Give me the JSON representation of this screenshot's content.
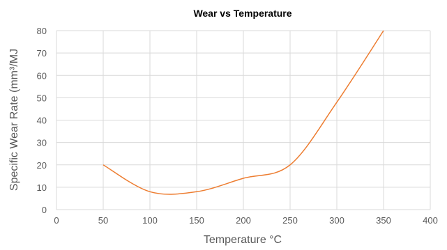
{
  "chart_data": {
    "type": "scatter",
    "title": "Wear vs Temperature",
    "xlabel": "Temperature °C",
    "ylabel": "Specific Wear Rate (mm³/MJ",
    "xlim": [
      0,
      400
    ],
    "ylim": [
      0,
      80
    ],
    "x_ticks": [
      0,
      50,
      100,
      150,
      200,
      250,
      300,
      350,
      400
    ],
    "y_ticks": [
      0,
      10,
      20,
      30,
      40,
      50,
      60,
      70,
      80
    ],
    "grid": true,
    "line_style": "smooth",
    "series": [
      {
        "color": "#ed7d31",
        "x": [
          50,
          100,
          150,
          200,
          250,
          300,
          350
        ],
        "y": [
          20,
          8,
          8,
          14,
          20,
          48,
          80
        ]
      }
    ]
  }
}
